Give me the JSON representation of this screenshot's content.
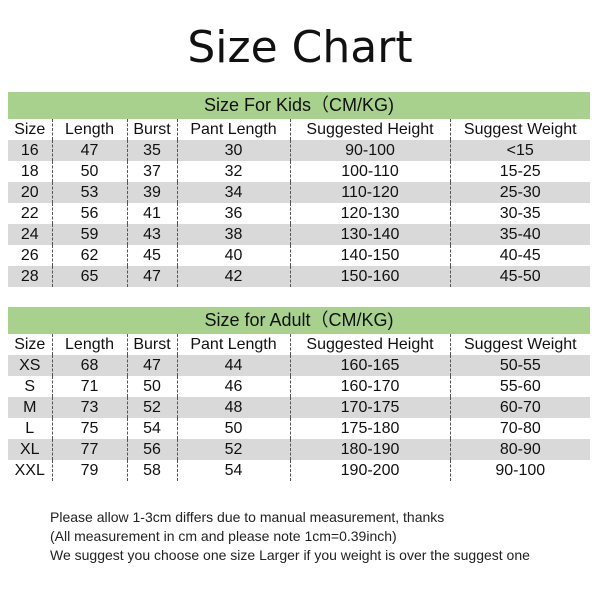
{
  "title": "Size Chart",
  "columns": [
    "Size",
    "Length",
    "Burst",
    "Pant Length",
    "Suggested Height",
    "Suggest Weight"
  ],
  "kids": {
    "heading": "Size For Kids（CM/KG)",
    "rows": [
      [
        "16",
        "47",
        "35",
        "30",
        "90-100",
        "<15"
      ],
      [
        "18",
        "50",
        "37",
        "32",
        "100-110",
        "15-25"
      ],
      [
        "20",
        "53",
        "39",
        "34",
        "110-120",
        "25-30"
      ],
      [
        "22",
        "56",
        "41",
        "36",
        "120-130",
        "30-35"
      ],
      [
        "24",
        "59",
        "43",
        "38",
        "130-140",
        "35-40"
      ],
      [
        "26",
        "62",
        "45",
        "40",
        "140-150",
        "40-45"
      ],
      [
        "28",
        "65",
        "47",
        "42",
        "150-160",
        "45-50"
      ]
    ]
  },
  "adult": {
    "heading": "Size for Adult（CM/KG)",
    "rows": [
      [
        "XS",
        "68",
        "47",
        "44",
        "160-165",
        "50-55"
      ],
      [
        "S",
        "71",
        "50",
        "46",
        "160-170",
        "55-60"
      ],
      [
        "M",
        "73",
        "52",
        "48",
        "170-175",
        "60-70"
      ],
      [
        "L",
        "75",
        "54",
        "50",
        "175-180",
        "70-80"
      ],
      [
        "XL",
        "77",
        "56",
        "52",
        "180-190",
        "80-90"
      ],
      [
        "XXL",
        "79",
        "58",
        "54",
        "190-200",
        "90-100"
      ]
    ]
  },
  "notes": [
    "Please allow 1-3cm differs due to manual measurement, thanks",
    "(All measurement in cm and please note 1cm=0.39inch)",
    "We suggest you choose one size Larger if you weight is over the suggest one"
  ],
  "colors": {
    "band": "#a9d18e",
    "stripe": "#d9d9d9"
  }
}
